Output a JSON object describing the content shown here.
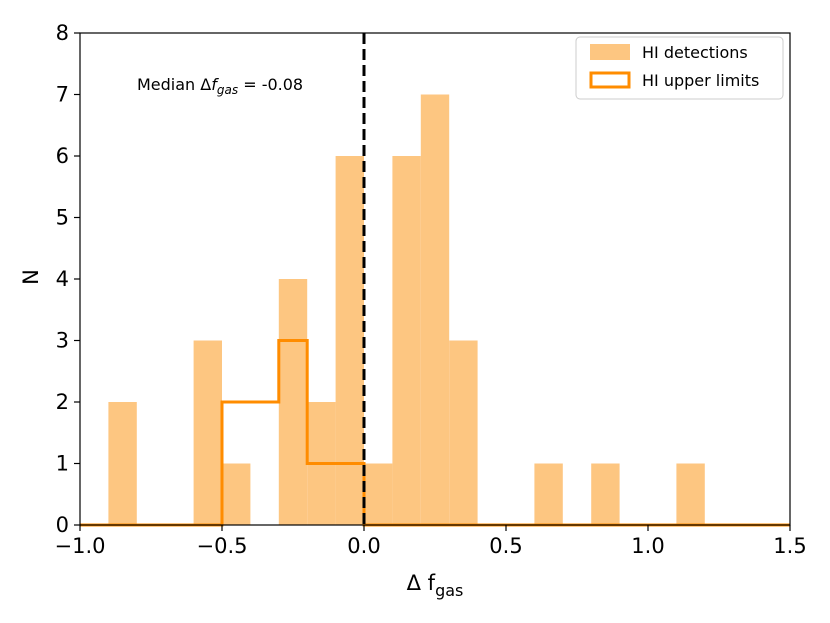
{
  "chart_data": {
    "type": "histogram",
    "xlabel_main": "Δ f",
    "xlabel_sub": "gas",
    "ylabel": "N",
    "xlim": [
      -1.0,
      1.5
    ],
    "ylim": [
      0,
      8
    ],
    "xticks": [
      -1.0,
      -0.5,
      0.0,
      0.5,
      1.0,
      1.5
    ],
    "xtick_labels": [
      "−1.0",
      "−0.5",
      "0.0",
      "0.5",
      "1.0",
      "1.5"
    ],
    "yticks": [
      0,
      1,
      2,
      3,
      4,
      5,
      6,
      7,
      8
    ],
    "ytick_labels": [
      "0",
      "1",
      "2",
      "3",
      "4",
      "5",
      "6",
      "7",
      "8"
    ],
    "bin_width": 0.1,
    "series": [
      {
        "name": "HI detections",
        "style": "filled",
        "color": "#fdc681",
        "bins": [
          {
            "x0": -0.9,
            "count": 2
          },
          {
            "x0": -0.6,
            "count": 3
          },
          {
            "x0": -0.5,
            "count": 1
          },
          {
            "x0": -0.3,
            "count": 4
          },
          {
            "x0": -0.2,
            "count": 2
          },
          {
            "x0": -0.1,
            "count": 6
          },
          {
            "x0": 0.0,
            "count": 1
          },
          {
            "x0": 0.1,
            "count": 6
          },
          {
            "x0": 0.2,
            "count": 7
          },
          {
            "x0": 0.3,
            "count": 3
          },
          {
            "x0": 0.6,
            "count": 1
          },
          {
            "x0": 0.8,
            "count": 1
          },
          {
            "x0": 1.1,
            "count": 1
          }
        ]
      },
      {
        "name": "HI upper limits",
        "style": "step",
        "color": "#ff8c00",
        "bins": [
          {
            "x0": -0.5,
            "count": 2
          },
          {
            "x0": -0.4,
            "count": 2
          },
          {
            "x0": -0.3,
            "count": 3
          },
          {
            "x0": -0.2,
            "count": 1
          },
          {
            "x0": -0.1,
            "count": 1
          }
        ]
      }
    ],
    "vline": {
      "x": 0.0,
      "style": "dashed",
      "color": "#000000"
    },
    "annotation": {
      "prefix": "Median Δ",
      "italic": "f",
      "sub": "gas",
      "suffix": " = -0.08"
    },
    "legend_position": "top-right"
  }
}
